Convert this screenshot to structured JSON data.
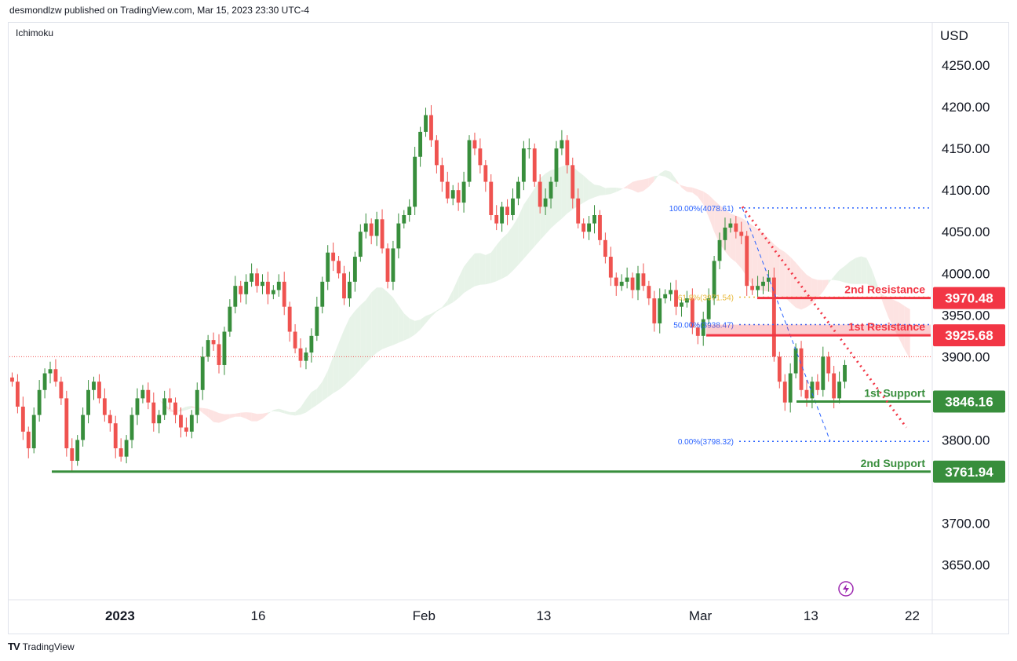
{
  "header": {
    "published": "desmondlzw published on TradingView.com, Mar 15, 2023 23:30 UTC-4",
    "indicator": "Ichimoku"
  },
  "footer": {
    "brand": "TradingView"
  },
  "colors": {
    "up": "#388e3c",
    "down": "#ef5350",
    "resistance": "#f23645",
    "support": "#388e3c",
    "cloud_bull": "#e7f3e8",
    "cloud_bear": "#fde3e2",
    "fib": "#2962ff",
    "fib_mid": "#e8b93a"
  },
  "chart_data": {
    "type": "candlestick",
    "currency": "USD",
    "ylim": [
      3610,
      4300
    ],
    "y_ticks": [
      "4250.00",
      "4200.00",
      "4150.00",
      "4100.00",
      "4050.00",
      "4000.00",
      "3950.00",
      "3900.00",
      "3800.00",
      "3700.00",
      "3650.00"
    ],
    "x_labels": [
      "2023",
      "16",
      "Feb",
      "13",
      "Mar",
      "13",
      "22"
    ],
    "levels": [
      {
        "name": "2nd Resistance",
        "value": 3970.48,
        "label": "3970.48",
        "kind": "resistance"
      },
      {
        "name": "1st Resistance",
        "value": 3925.68,
        "label": "3925.68",
        "kind": "resistance"
      },
      {
        "name": "1st Support",
        "value": 3846.16,
        "label": "3846.16",
        "kind": "support"
      },
      {
        "name": "2nd Support",
        "value": 3761.94,
        "label": "3761.94",
        "kind": "support"
      }
    ],
    "fib": [
      {
        "label": "100.00%(4078.61)",
        "value": 4078.61
      },
      {
        "label": "50.00%(3938.47)",
        "value": 3938.47
      },
      {
        "label": "61.8%(3971.54)",
        "value": 3971.54
      },
      {
        "label": "0.00%(3798.32)",
        "value": 3798.32
      }
    ],
    "current_price": 3900,
    "closes": [
      3870,
      3840,
      3810,
      3790,
      3830,
      3860,
      3880,
      3885,
      3870,
      3850,
      3790,
      3775,
      3800,
      3830,
      3860,
      3870,
      3850,
      3830,
      3820,
      3790,
      3780,
      3800,
      3830,
      3850,
      3860,
      3845,
      3820,
      3830,
      3850,
      3845,
      3830,
      3815,
      3810,
      3830,
      3860,
      3900,
      3920,
      3915,
      3890,
      3930,
      3960,
      3985,
      3975,
      3990,
      4000,
      3985,
      3990,
      3975,
      3980,
      3990,
      3960,
      3930,
      3910,
      3895,
      3905,
      3925,
      3960,
      3990,
      4025,
      4015,
      4000,
      3970,
      3990,
      4020,
      4050,
      4060,
      4045,
      4065,
      4030,
      3990,
      4030,
      4060,
      4070,
      4080,
      4140,
      4170,
      4190,
      4160,
      4130,
      4110,
      4090,
      4100,
      4085,
      4110,
      4160,
      4150,
      4130,
      4110,
      4070,
      4060,
      4080,
      4070,
      4090,
      4110,
      4150,
      4150,
      4110,
      4080,
      4090,
      4110,
      4150,
      4160,
      4130,
      4090,
      4060,
      4050,
      4060,
      4070,
      4040,
      4020,
      3995,
      3985,
      3990,
      3995,
      3980,
      4000,
      3985,
      3970,
      3940,
      3970,
      3975,
      3980,
      3960,
      3965,
      3970,
      3935,
      3925,
      3945,
      3970,
      4015,
      4040,
      4055,
      4060,
      4050,
      4045,
      3985,
      3980,
      3985,
      3990,
      3995,
      3900,
      3870,
      3845,
      3880,
      3910,
      3860,
      3850,
      3870,
      3860,
      3900,
      3880,
      3850,
      3870,
      3890
    ]
  },
  "watermark_icon": "lightning-icon"
}
